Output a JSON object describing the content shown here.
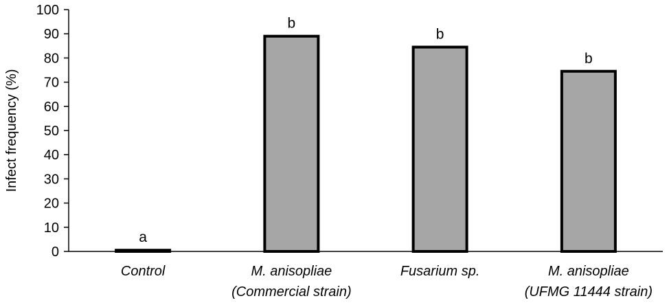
{
  "chart_data": {
    "type": "bar",
    "title": "",
    "xlabel": "",
    "ylabel": "Infect frequency (%)",
    "ylim": [
      0,
      100
    ],
    "yticks": [
      "0",
      "10",
      "20",
      "30",
      "40",
      "50",
      "60",
      "70",
      "80",
      "90",
      "100"
    ],
    "grid": false,
    "categories": [
      {
        "line1": "Control",
        "line2": ""
      },
      {
        "line1": "M. anisopliae",
        "line2": "(Commercial strain)"
      },
      {
        "line1": "Fusarium sp.",
        "line2": ""
      },
      {
        "line1": "M. anisopliae",
        "line2": "(UFMG 11444  strain)"
      }
    ],
    "values": [
      0.5,
      89,
      84.5,
      74.5
    ],
    "significance_labels": [
      "a",
      "b",
      "b",
      "b"
    ],
    "bar_color": "#a6a6a6",
    "bar_edge_color": "#000000"
  }
}
